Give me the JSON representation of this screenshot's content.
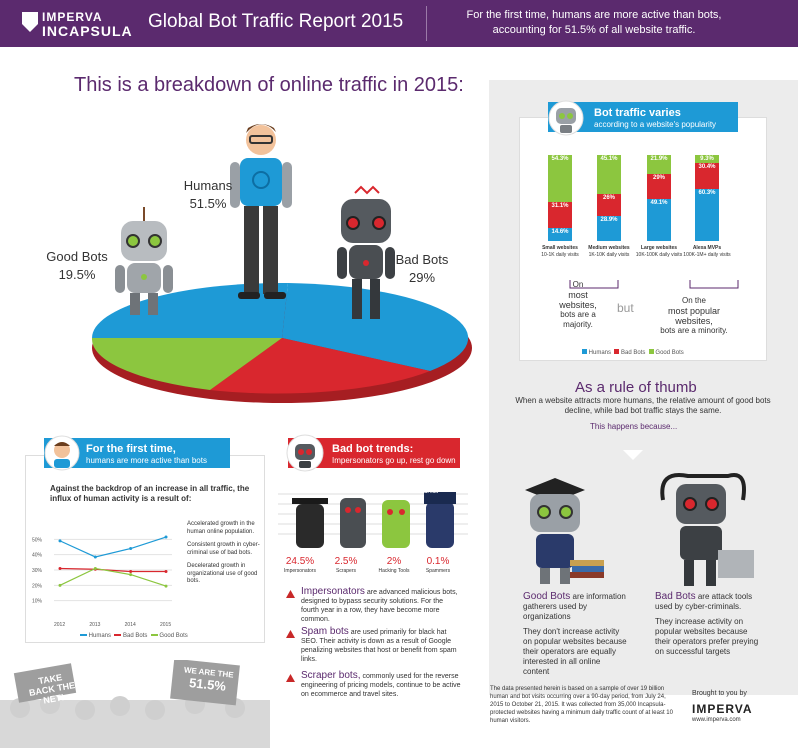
{
  "header": {
    "logo_top": "IMPERVA",
    "logo_bottom": "INCAPSULA",
    "title": "Global Bot Traffic Report 2015",
    "subtitle": "For the first time, humans are more active than bots, accounting for 51.5% of all website traffic."
  },
  "breakdown": {
    "heading": "This is a breakdown of online traffic in 2015:",
    "segments": [
      {
        "name": "Humans",
        "value": "51.5%",
        "pct": 51.5,
        "color": "#1e9ad6"
      },
      {
        "name": "Good Bots",
        "value": "19.5%",
        "pct": 19.5,
        "color": "#8cc63f"
      },
      {
        "name": "Bad Bots",
        "value": "29%",
        "pct": 29,
        "color": "#d9272e"
      }
    ]
  },
  "popularity": {
    "title": "Bot traffic varies",
    "subtitle": "according to a website's popularity",
    "bars": [
      {
        "name": "Small websites",
        "range": "10-1K daily visits",
        "humans": "14.6%",
        "bad": "31.1%",
        "good": "54.3%",
        "h": 14.6,
        "b": 31.1,
        "g": 54.3
      },
      {
        "name": "Medium websites",
        "range": "1K-10K daily visits",
        "humans": "28.9%",
        "bad": "26%",
        "good": "45.1%",
        "h": 28.9,
        "b": 26,
        "g": 45.1
      },
      {
        "name": "Large websites",
        "range": "10K-100K daily visits",
        "humans": "49.1%",
        "bad": "29%",
        "good": "21.9%",
        "h": 49.1,
        "b": 29,
        "g": 21.9
      },
      {
        "name": "Alexa MVPs",
        "range": "100K-1M+ daily visits",
        "humans": "60.3%",
        "bad": "30.4%",
        "good": "9.3%",
        "h": 60.3,
        "b": 30.4,
        "g": 9.3
      }
    ],
    "note_left_1": "On",
    "note_left_2": "most websites,",
    "note_left_3": "bots are a majority.",
    "but": "but",
    "note_right_1": "On the",
    "note_right_2": "most popular websites,",
    "note_right_3": "bots are a minority.",
    "legend": [
      "Humans",
      "Bad Bots",
      "Good Bots"
    ],
    "colors": {
      "humans": "#1e9ad6",
      "bad": "#d9272e",
      "good": "#8cc63f"
    }
  },
  "rule": {
    "title": "As a rule of thumb",
    "body": "When a website attracts more humans, the relative amount of good bots decline, while bad bot traffic stays the same.",
    "because": "This happens because...",
    "good_title": "Good Bots",
    "good_desc": "are information gatherers used by organizations",
    "good_body": "They don't increase activity on popular websites because their operators are equally interested in all online content",
    "bad_title": "Bad Bots",
    "bad_desc": "are attack tools used by cyber-criminals.",
    "bad_body": "They increase activity on popular websites because their operators prefer preying on successful targets"
  },
  "trend": {
    "title": "For the first time,",
    "subtitle": "humans are more active than bots",
    "intro": "Against the backdrop of an increase in all traffic, the influx of human activity is a result of:",
    "notes": [
      "Accelerated growth in the human online population.",
      "Consistent growth in cyber-criminal use of bad bots.",
      "Decelerated growth in organizational use of good bots."
    ],
    "legend": [
      "Humans",
      "Bad Bots",
      "Good Bots"
    ]
  },
  "chart_data": {
    "type": "line",
    "x": [
      "2012",
      "2013",
      "2014",
      "2015"
    ],
    "ylim": [
      0,
      60
    ],
    "yticks": [
      "10%",
      "20%",
      "30%",
      "40%",
      "50%"
    ],
    "series": [
      {
        "name": "Humans",
        "values": [
          49,
          38.5,
          44,
          51.5
        ],
        "color": "#1e9ad6"
      },
      {
        "name": "Bad Bots",
        "values": [
          31,
          30.5,
          29,
          29
        ],
        "color": "#d9272e"
      },
      {
        "name": "Good Bots",
        "values": [
          20,
          31,
          27,
          19.5
        ],
        "color": "#8cc63f"
      }
    ]
  },
  "badbots": {
    "title": "Bad bot trends:",
    "subtitle": "Impersonators go up, rest go down",
    "sign": "SPAM",
    "types": [
      {
        "pct": "24.5%",
        "name": "Impersonators"
      },
      {
        "pct": "2.5%",
        "name": "Scrapers"
      },
      {
        "pct": "2%",
        "name": "Hacking Tools"
      },
      {
        "pct": "0.1%",
        "name": "Spammers"
      }
    ],
    "items": [
      {
        "head": "Impersonators",
        "body": "are advanced malicious bots, designed to bypass security solutions. For the fourth year in a row, they have become more common."
      },
      {
        "head": "Spam bots",
        "body": "are used primarily for black hat SEO. Their activity is down as a result of Google penalizing websites that host or benefit from spam links."
      },
      {
        "head": "Scraper bots,",
        "body": "commonly used for the reverse engineering of pricing models, continue to be active on ecommerce and travel sites."
      }
    ]
  },
  "crowd": {
    "sign1": "TAKE BACK THE NET!",
    "sign2_a": "WE ARE THE",
    "sign2_b": "51.5%"
  },
  "footer": {
    "note": "The data presented herein is based on a sample of over 19 billion human and bot visits occurring over a 90-day period, from July 24, 2015 to October 21, 2015. It was collected from 35,000 Incapsula-protected websites having a minimum daily traffic count of at least 10 human visitors.",
    "brought": "Brought to you by",
    "brand": "IMPERVA",
    "url": "www.imperva.com"
  }
}
